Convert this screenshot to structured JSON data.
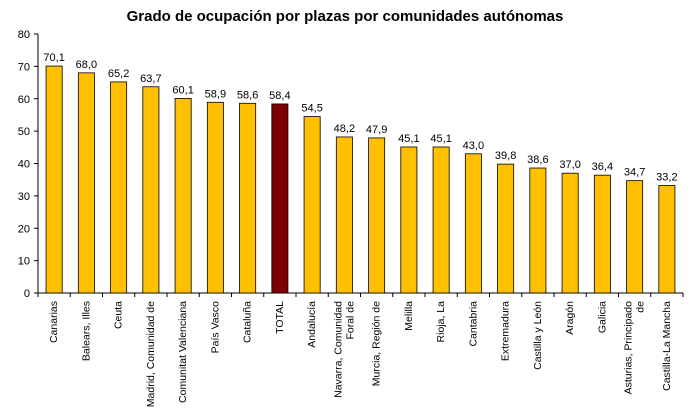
{
  "chart_data": {
    "type": "bar",
    "title": "Grado de ocupación por plazas por comunidades autónomas",
    "xlabel": "",
    "ylabel": "",
    "ylim": [
      0,
      80
    ],
    "yticks": [
      0,
      10,
      20,
      30,
      40,
      50,
      60,
      70,
      80
    ],
    "grid": false,
    "legend": "none",
    "categories": [
      "Canarias",
      "Balears, Illes",
      "Ceuta",
      "Madrid, Comunidad de",
      "Comunitat Valenciana",
      "País Vasco",
      "Cataluña",
      "TOTAL",
      "Andalucía",
      "Navarra, Comunidad Foral de",
      "Murcia, Región de",
      "Melilla",
      "Rioja, La",
      "Cantabria",
      "Extremadura",
      "Castilla y León",
      "Aragón",
      "Galicia",
      "Asturias, Principado de",
      "Castilla-La Mancha"
    ],
    "values": [
      70.1,
      68.0,
      65.2,
      63.7,
      60.1,
      58.9,
      58.6,
      58.4,
      54.5,
      48.2,
      47.9,
      45.1,
      45.1,
      43.0,
      39.8,
      38.6,
      37.0,
      36.4,
      34.7,
      33.2
    ],
    "value_labels": [
      "70,1",
      "68,0",
      "65,2",
      "63,7",
      "60,1",
      "58,9",
      "58,6",
      "58,4",
      "54,5",
      "48,2",
      "47,9",
      "45,1",
      "45,1",
      "43,0",
      "39,8",
      "38,6",
      "37,0",
      "36,4",
      "34,7",
      "33,2"
    ],
    "colors": {
      "bar": "#FFC000",
      "highlight": "#7F0000",
      "outline": "#000000"
    },
    "highlight_category": "TOTAL"
  }
}
